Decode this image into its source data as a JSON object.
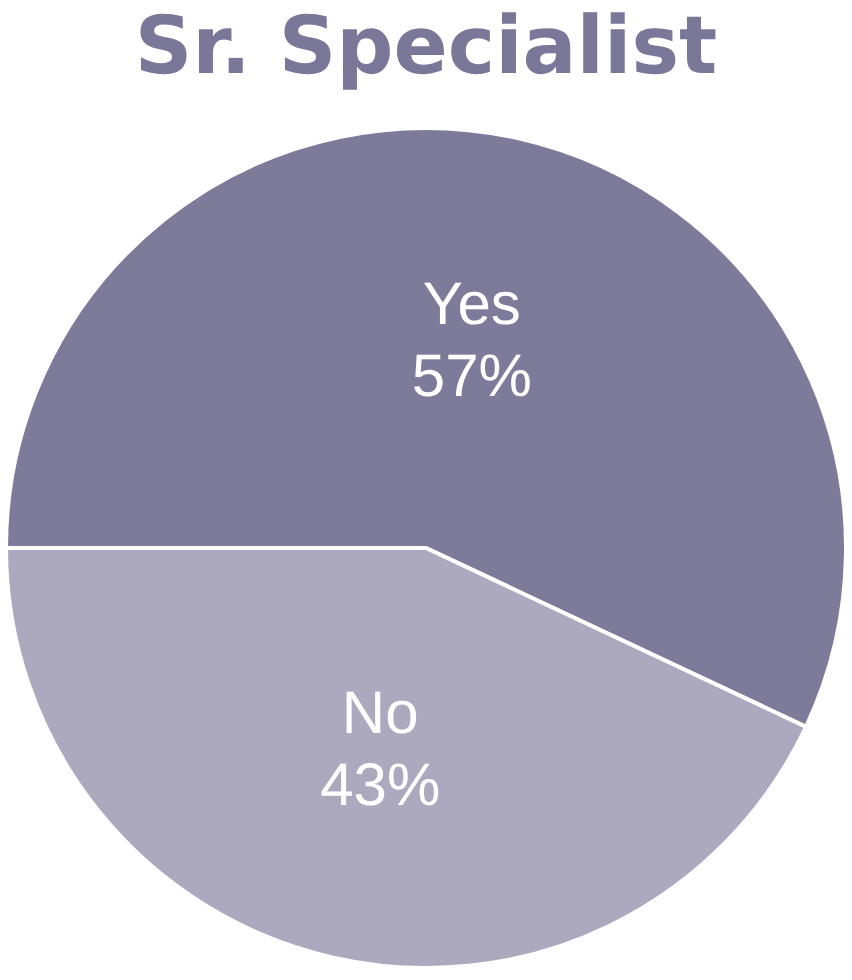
{
  "chart_data": {
    "type": "pie",
    "title": "Sr. Specialist",
    "categories": [
      "Yes",
      "No"
    ],
    "values": [
      57,
      43
    ],
    "colors": [
      "#7e7b9a",
      "#aca9bf"
    ],
    "value_labels": [
      "57%",
      "43%"
    ],
    "legend": false
  }
}
